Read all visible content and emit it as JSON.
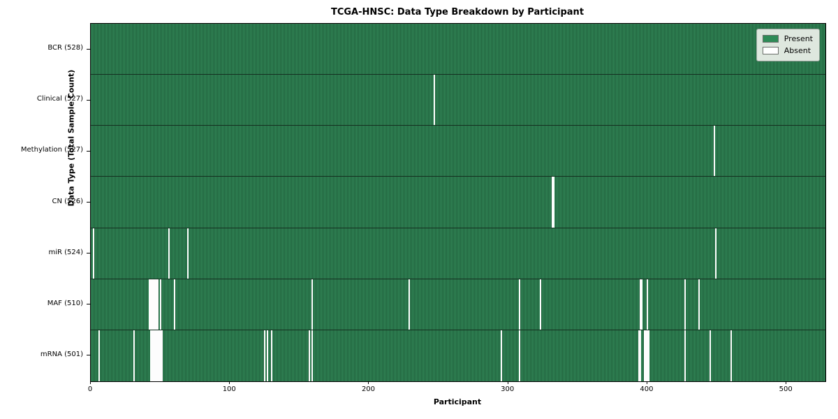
{
  "title": "TCGA-HNSC: Data Type Breakdown by Participant",
  "chart_data": {
    "type": "heatmap",
    "title": "TCGA-HNSC: Data Type Breakdown by Participant",
    "xlabel": "Participant",
    "ylabel": "Data Type (Total Sample Count)",
    "xlim": [
      0,
      528
    ],
    "n_participants": 528,
    "x_ticks": [
      0,
      100,
      200,
      300,
      400,
      500
    ],
    "grid": false,
    "legend": {
      "position": "upper right",
      "entries": [
        {
          "label": "Present",
          "color": "#2e8b57"
        },
        {
          "label": "Absent",
          "color": "#ffffff"
        }
      ]
    },
    "colors": {
      "present": "#2e8b57",
      "absent": "#ffffff",
      "bar_edge": "#1f5e3a",
      "row_separator": "#142e1f"
    },
    "rows": [
      {
        "data_type": "BCR",
        "label": "BCR (528)",
        "total": 528,
        "absent_participants": []
      },
      {
        "data_type": "Clinical",
        "label": "Clinical (527)",
        "total": 527,
        "absent_participants": [
          247
        ]
      },
      {
        "data_type": "Methylation",
        "label": "Methylation (527)",
        "total": 527,
        "absent_participants": [
          448
        ]
      },
      {
        "data_type": "CN",
        "label": "CN (526)",
        "total": 526,
        "absent_participants": [
          332,
          333
        ]
      },
      {
        "data_type": "miR",
        "label": "miR (524)",
        "total": 524,
        "absent_participants": [
          2,
          56,
          70,
          449
        ]
      },
      {
        "data_type": "MAF",
        "label": "MAF (510)",
        "total": 510,
        "absent_participants": [
          42,
          43,
          44,
          45,
          46,
          47,
          48,
          50,
          60,
          159,
          229,
          308,
          323,
          395,
          396,
          400,
          427,
          437
        ]
      },
      {
        "data_type": "mRNA",
        "label": "mRNA (501)",
        "total": 501,
        "absent_participants": [
          6,
          31,
          43,
          44,
          45,
          46,
          47,
          48,
          49,
          50,
          51,
          125,
          127,
          130,
          157,
          159,
          295,
          308,
          394,
          395,
          398,
          399,
          400,
          401,
          427,
          445,
          460
        ]
      }
    ]
  }
}
